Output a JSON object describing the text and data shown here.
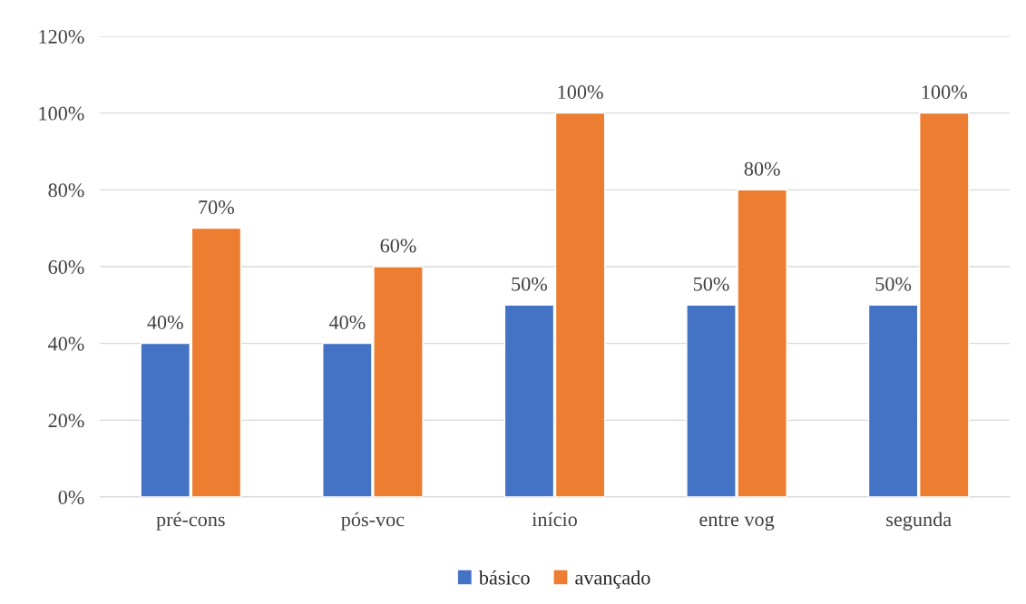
{
  "chart_data": {
    "type": "bar",
    "categories": [
      "pré-cons",
      "pós-voc",
      "início",
      "entre vog",
      "segunda"
    ],
    "series": [
      {
        "name": "básico",
        "color": "#4472c4",
        "values": [
          40,
          40,
          50,
          50,
          50
        ],
        "value_labels": [
          "40%",
          "40%",
          "50%",
          "50%",
          "50%"
        ]
      },
      {
        "name": "avançado",
        "color": "#ed7d31",
        "values": [
          70,
          60,
          100,
          80,
          100
        ],
        "value_labels": [
          "70%",
          "60%",
          "100%",
          "80%",
          "100%"
        ]
      }
    ],
    "ylim": [
      0,
      120
    ],
    "yticks": [
      {
        "value": 0,
        "label": "0%"
      },
      {
        "value": 20,
        "label": "20%"
      },
      {
        "value": 40,
        "label": "40%"
      },
      {
        "value": 60,
        "label": "60%"
      },
      {
        "value": 80,
        "label": "80%"
      },
      {
        "value": 100,
        "label": "100%"
      },
      {
        "value": 120,
        "label": "120%"
      }
    ],
    "grid": "y",
    "legend": "bottom"
  }
}
